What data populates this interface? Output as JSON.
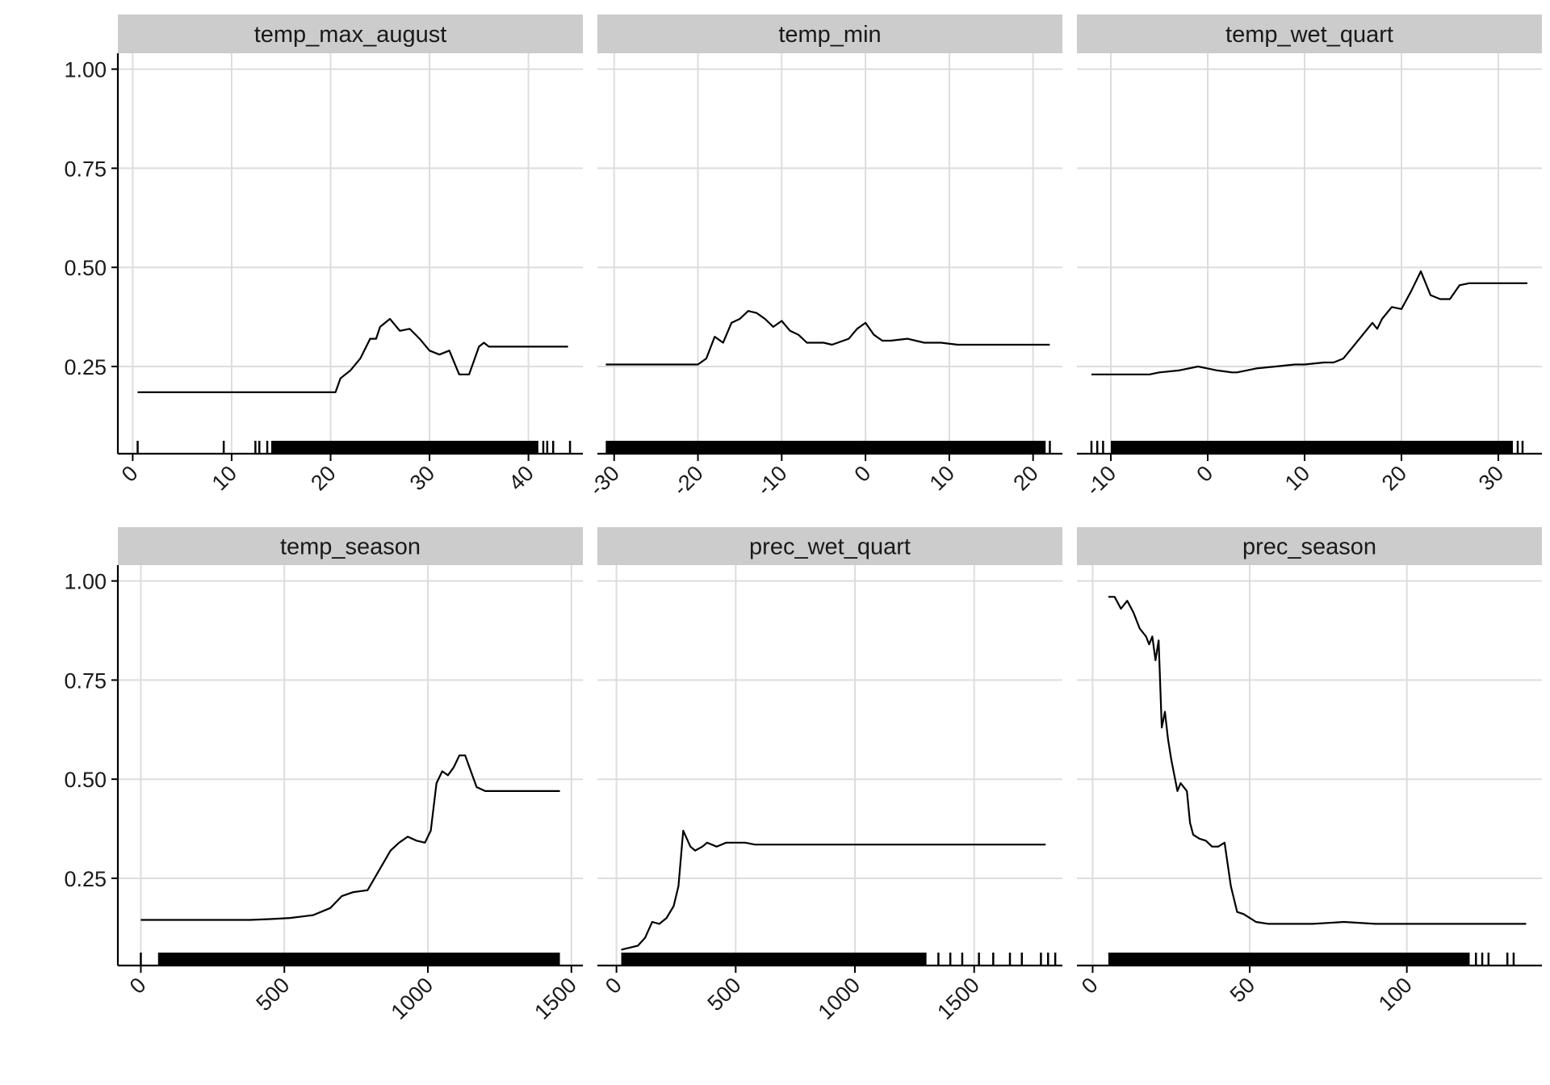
{
  "colors": {
    "background": "#ffffff",
    "strip": "#cccccc",
    "grid": "#dddddd",
    "axis": "#000000",
    "line": "#000000",
    "rug": "#000000",
    "text": "#1a1a1a"
  },
  "chart_data": {
    "type": "line",
    "layout": "facet-grid 2 rows x 3 columns, shared y axis, free x axis, rug plot along bottom",
    "grid": true,
    "legend": "none",
    "y_axis": {
      "range": [
        0.03,
        1.04
      ],
      "ticks": [
        0.25,
        0.5,
        0.75,
        1.0
      ],
      "tick_labels": [
        "0.25",
        "0.50",
        "0.75",
        "1.00"
      ]
    },
    "panels": [
      {
        "title": "temp_max_august",
        "x_range": [
          -1.5,
          45.5
        ],
        "x_ticks": [
          0,
          10,
          20,
          30,
          40
        ],
        "x_tick_labels": [
          "0",
          "10",
          "20",
          "30",
          "40"
        ],
        "rug": {
          "dense_range": [
            14,
            41
          ],
          "ticks": [
            0.5,
            9.2,
            12.4,
            12.8,
            13.6,
            41.5,
            41.9,
            42.5,
            44.2
          ]
        },
        "series": [
          [
            0.5,
            0.185
          ],
          [
            20.5,
            0.185
          ],
          [
            21,
            0.22
          ],
          [
            22,
            0.24
          ],
          [
            23,
            0.27
          ],
          [
            24,
            0.32
          ],
          [
            24.6,
            0.32
          ],
          [
            25,
            0.35
          ],
          [
            26,
            0.37
          ],
          [
            27,
            0.34
          ],
          [
            28,
            0.345
          ],
          [
            29,
            0.32
          ],
          [
            30,
            0.29
          ],
          [
            31,
            0.28
          ],
          [
            32,
            0.29
          ],
          [
            33,
            0.23
          ],
          [
            34,
            0.23
          ],
          [
            35,
            0.3
          ],
          [
            35.5,
            0.31
          ],
          [
            36,
            0.3
          ],
          [
            44,
            0.3
          ]
        ]
      },
      {
        "title": "temp_min",
        "x_range": [
          -32,
          23.5
        ],
        "x_ticks": [
          -30,
          -20,
          -10,
          0,
          10,
          20
        ],
        "x_tick_labels": [
          "-30",
          "-20",
          "-10",
          "0",
          "10",
          "20"
        ],
        "rug": {
          "dense_range": [
            -31,
            21.5
          ],
          "ticks": [
            22
          ]
        },
        "series": [
          [
            -31,
            0.255
          ],
          [
            -20,
            0.255
          ],
          [
            -19,
            0.27
          ],
          [
            -18,
            0.325
          ],
          [
            -17,
            0.31
          ],
          [
            -16,
            0.36
          ],
          [
            -15,
            0.37
          ],
          [
            -14,
            0.39
          ],
          [
            -13,
            0.385
          ],
          [
            -12,
            0.37
          ],
          [
            -11,
            0.35
          ],
          [
            -10,
            0.365
          ],
          [
            -9,
            0.34
          ],
          [
            -8,
            0.33
          ],
          [
            -7,
            0.31
          ],
          [
            -6,
            0.31
          ],
          [
            -5,
            0.31
          ],
          [
            -4,
            0.305
          ],
          [
            -2,
            0.32
          ],
          [
            -1,
            0.345
          ],
          [
            0,
            0.36
          ],
          [
            1,
            0.33
          ],
          [
            2,
            0.315
          ],
          [
            3,
            0.315
          ],
          [
            5,
            0.32
          ],
          [
            7,
            0.31
          ],
          [
            9,
            0.31
          ],
          [
            11,
            0.305
          ],
          [
            22,
            0.305
          ]
        ]
      },
      {
        "title": "temp_wet_quart",
        "x_range": [
          -13.5,
          34.5
        ],
        "x_ticks": [
          -10,
          0,
          10,
          20,
          30
        ],
        "x_tick_labels": [
          "-10",
          "0",
          "10",
          "20",
          "30"
        ],
        "rug": {
          "dense_range": [
            -10,
            31.5
          ],
          "ticks": [
            -12,
            -11.4,
            -10.8,
            32,
            32.5
          ]
        },
        "series": [
          [
            -12,
            0.23
          ],
          [
            -6,
            0.23
          ],
          [
            -5,
            0.235
          ],
          [
            -3,
            0.24
          ],
          [
            -1,
            0.25
          ],
          [
            0,
            0.245
          ],
          [
            1,
            0.24
          ],
          [
            2.5,
            0.235
          ],
          [
            3,
            0.235
          ],
          [
            4,
            0.24
          ],
          [
            5,
            0.245
          ],
          [
            7,
            0.25
          ],
          [
            9,
            0.255
          ],
          [
            10,
            0.255
          ],
          [
            12,
            0.26
          ],
          [
            13,
            0.26
          ],
          [
            14,
            0.27
          ],
          [
            15,
            0.3
          ],
          [
            16,
            0.33
          ],
          [
            17,
            0.36
          ],
          [
            17.5,
            0.345
          ],
          [
            18,
            0.37
          ],
          [
            19,
            0.4
          ],
          [
            20,
            0.395
          ],
          [
            21,
            0.44
          ],
          [
            22,
            0.49
          ],
          [
            23,
            0.43
          ],
          [
            24,
            0.42
          ],
          [
            25,
            0.42
          ],
          [
            26,
            0.455
          ],
          [
            27,
            0.46
          ],
          [
            33,
            0.46
          ]
        ]
      },
      {
        "title": "temp_season",
        "x_range": [
          -80,
          1540
        ],
        "x_ticks": [
          0,
          500,
          1000,
          1500
        ],
        "x_tick_labels": [
          "0",
          "500",
          "1000",
          "1500"
        ],
        "rug": {
          "dense_range": [
            60,
            1460
          ],
          "ticks": [
            0
          ]
        },
        "series": [
          [
            0,
            0.145
          ],
          [
            380,
            0.145
          ],
          [
            450,
            0.147
          ],
          [
            520,
            0.15
          ],
          [
            600,
            0.157
          ],
          [
            660,
            0.175
          ],
          [
            700,
            0.205
          ],
          [
            740,
            0.215
          ],
          [
            790,
            0.22
          ],
          [
            830,
            0.27
          ],
          [
            870,
            0.32
          ],
          [
            900,
            0.34
          ],
          [
            930,
            0.355
          ],
          [
            960,
            0.345
          ],
          [
            990,
            0.34
          ],
          [
            1010,
            0.37
          ],
          [
            1030,
            0.49
          ],
          [
            1050,
            0.52
          ],
          [
            1070,
            0.51
          ],
          [
            1090,
            0.53
          ],
          [
            1110,
            0.56
          ],
          [
            1130,
            0.56
          ],
          [
            1150,
            0.52
          ],
          [
            1170,
            0.48
          ],
          [
            1200,
            0.47
          ],
          [
            1460,
            0.47
          ]
        ]
      },
      {
        "title": "prec_wet_quart",
        "x_range": [
          -80,
          1870
        ],
        "x_ticks": [
          0,
          500,
          1000,
          1500
        ],
        "x_tick_labels": [
          "0",
          "500",
          "1000",
          "1500"
        ],
        "rug": {
          "dense_range": [
            20,
            1300
          ],
          "ticks": [
            1350,
            1400,
            1450,
            1520,
            1580,
            1650,
            1700,
            1780,
            1810,
            1840
          ]
        },
        "series": [
          [
            20,
            0.07
          ],
          [
            90,
            0.08
          ],
          [
            120,
            0.1
          ],
          [
            150,
            0.14
          ],
          [
            180,
            0.135
          ],
          [
            210,
            0.15
          ],
          [
            240,
            0.18
          ],
          [
            260,
            0.23
          ],
          [
            280,
            0.37
          ],
          [
            310,
            0.33
          ],
          [
            330,
            0.32
          ],
          [
            360,
            0.33
          ],
          [
            380,
            0.34
          ],
          [
            420,
            0.33
          ],
          [
            460,
            0.34
          ],
          [
            540,
            0.34
          ],
          [
            580,
            0.335
          ],
          [
            1800,
            0.335
          ]
        ]
      },
      {
        "title": "prec_season",
        "x_range": [
          -5,
          143
        ],
        "x_ticks": [
          0,
          50,
          100
        ],
        "x_tick_labels": [
          "0",
          "50",
          "100"
        ],
        "rug": {
          "dense_range": [
            5,
            120
          ],
          "ticks": [
            122,
            124,
            126,
            132,
            134
          ]
        },
        "series": [
          [
            5,
            0.96
          ],
          [
            7,
            0.96
          ],
          [
            9,
            0.93
          ],
          [
            11,
            0.95
          ],
          [
            13,
            0.92
          ],
          [
            15,
            0.88
          ],
          [
            16,
            0.87
          ],
          [
            17,
            0.86
          ],
          [
            18,
            0.84
          ],
          [
            19,
            0.86
          ],
          [
            20,
            0.8
          ],
          [
            21,
            0.85
          ],
          [
            22,
            0.63
          ],
          [
            23,
            0.67
          ],
          [
            24,
            0.6
          ],
          [
            25,
            0.55
          ],
          [
            27,
            0.47
          ],
          [
            28,
            0.49
          ],
          [
            30,
            0.47
          ],
          [
            31,
            0.39
          ],
          [
            32,
            0.36
          ],
          [
            34,
            0.35
          ],
          [
            36,
            0.345
          ],
          [
            38,
            0.33
          ],
          [
            40,
            0.33
          ],
          [
            42,
            0.34
          ],
          [
            44,
            0.23
          ],
          [
            46,
            0.165
          ],
          [
            48,
            0.16
          ],
          [
            50,
            0.15
          ],
          [
            52,
            0.14
          ],
          [
            56,
            0.135
          ],
          [
            70,
            0.135
          ],
          [
            80,
            0.14
          ],
          [
            90,
            0.135
          ],
          [
            138,
            0.135
          ]
        ]
      }
    ]
  }
}
